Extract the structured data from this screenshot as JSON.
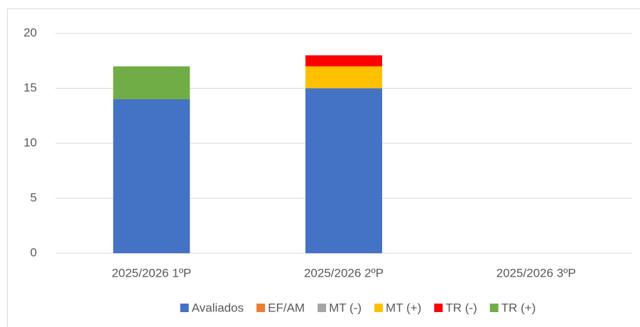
{
  "chart_data": {
    "type": "stacked_bar",
    "categories": [
      "2025/2026 1ºP",
      "2025/2026 2ºP",
      "2025/2026 3ºP"
    ],
    "series": [
      {
        "name": "Avaliados",
        "color": "#4472c4",
        "values": [
          14,
          15,
          0
        ]
      },
      {
        "name": "EF/AM",
        "color": "#ed7d31",
        "values": [
          0,
          0,
          0
        ]
      },
      {
        "name": "MT (-)",
        "color": "#a5a5a5",
        "values": [
          0,
          0,
          0
        ]
      },
      {
        "name": "MT (+)",
        "color": "#ffc000",
        "values": [
          0,
          2,
          0
        ]
      },
      {
        "name": "TR (-)",
        "color": "#ff0000",
        "values": [
          0,
          1,
          0
        ]
      },
      {
        "name": "TR (+)",
        "color": "#70ad47",
        "values": [
          3,
          0,
          0
        ]
      }
    ],
    "ylim": [
      0,
      20
    ],
    "yticks": [
      0,
      5,
      10,
      15,
      20
    ],
    "grid": true,
    "legend": "bottom"
  }
}
